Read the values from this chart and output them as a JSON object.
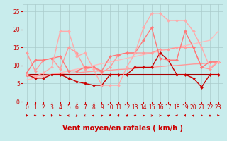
{
  "x": [
    0,
    1,
    2,
    3,
    4,
    5,
    6,
    7,
    8,
    9,
    10,
    11,
    12,
    13,
    14,
    15,
    16,
    17,
    18,
    19,
    20,
    21,
    22,
    23
  ],
  "series": [
    {
      "name": "flat_dark1",
      "color": "#880000",
      "linewidth": 1.5,
      "marker": null,
      "markersize": 0,
      "y": [
        7.5,
        7.5,
        7.5,
        7.5,
        7.5,
        7.5,
        7.5,
        7.5,
        7.5,
        7.5,
        7.5,
        7.5,
        7.5,
        7.5,
        7.5,
        7.5,
        7.5,
        7.5,
        7.5,
        7.5,
        7.5,
        7.5,
        7.5,
        7.5
      ]
    },
    {
      "name": "flat_dark2",
      "color": "#AA0000",
      "linewidth": 1.2,
      "marker": null,
      "markersize": 0,
      "y": [
        7.5,
        7.5,
        7.5,
        7.5,
        7.5,
        7.5,
        7.5,
        7.5,
        7.5,
        7.5,
        7.5,
        7.5,
        7.5,
        7.5,
        7.5,
        7.5,
        7.5,
        7.5,
        7.5,
        7.5,
        7.5,
        7.5,
        7.5,
        7.5
      ]
    },
    {
      "name": "jagged_dark",
      "color": "#CC0000",
      "linewidth": 1.0,
      "marker": "D",
      "markersize": 2.0,
      "y": [
        7.5,
        6.5,
        6.5,
        7.5,
        7.5,
        6.5,
        5.5,
        5.0,
        4.5,
        4.5,
        7.5,
        7.5,
        7.5,
        9.5,
        9.5,
        9.5,
        13.5,
        11.5,
        7.5,
        7.5,
        6.5,
        4.0,
        7.5,
        7.5
      ]
    },
    {
      "name": "medium_light1",
      "color": "#FF9999",
      "linewidth": 1.0,
      "marker": "D",
      "markersize": 2.0,
      "y": [
        13.5,
        8.5,
        11.5,
        12.0,
        9.0,
        15.0,
        13.5,
        9.0,
        9.5,
        8.0,
        9.5,
        13.0,
        13.5,
        13.5,
        13.5,
        13.5,
        14.5,
        14.5,
        15.0,
        15.0,
        15.0,
        9.5,
        9.0,
        11.0
      ]
    },
    {
      "name": "medium_light2",
      "color": "#FF7777",
      "linewidth": 1.0,
      "marker": "D",
      "markersize": 2.0,
      "y": [
        8.0,
        11.5,
        11.5,
        12.0,
        12.5,
        8.5,
        8.5,
        9.5,
        9.5,
        8.5,
        12.5,
        13.0,
        13.5,
        13.5,
        17.0,
        20.5,
        12.0,
        11.5,
        11.5,
        19.5,
        15.0,
        9.5,
        11.0,
        11.0
      ]
    },
    {
      "name": "peaked_light",
      "color": "#FFAAAA",
      "linewidth": 1.0,
      "marker": "D",
      "markersize": 2.0,
      "y": [
        7.5,
        7.0,
        8.0,
        9.5,
        19.5,
        19.5,
        12.5,
        13.5,
        9.0,
        4.5,
        4.5,
        4.5,
        9.5,
        13.5,
        20.5,
        24.5,
        24.5,
        22.5,
        22.5,
        22.5,
        19.5,
        15.0,
        9.5,
        11.0
      ]
    },
    {
      "name": "trend_upper",
      "color": "#FFBBBB",
      "linewidth": 1.0,
      "marker": null,
      "markersize": 0,
      "y": [
        6.0,
        6.5,
        7.0,
        7.5,
        8.0,
        8.5,
        9.0,
        9.5,
        10.0,
        10.5,
        11.0,
        11.5,
        12.0,
        12.5,
        13.0,
        13.5,
        14.0,
        14.5,
        15.0,
        15.5,
        16.0,
        16.5,
        17.0,
        19.5
      ]
    },
    {
      "name": "trend_lower",
      "color": "#FF9999",
      "linewidth": 1.0,
      "marker": null,
      "markersize": 0,
      "y": [
        7.0,
        7.1,
        7.3,
        7.5,
        7.7,
        7.9,
        8.0,
        8.2,
        8.4,
        8.5,
        8.7,
        8.9,
        9.0,
        9.2,
        9.4,
        9.5,
        9.7,
        9.9,
        10.0,
        10.2,
        10.4,
        10.5,
        10.7,
        10.9
      ]
    }
  ],
  "xlim": [
    -0.5,
    23.5
  ],
  "ylim": [
    0,
    27
  ],
  "yticks": [
    0,
    5,
    10,
    15,
    20,
    25
  ],
  "xlabel": "Vent moyen/en rafales ( km/h )",
  "bg_color": "#C8ECEC",
  "grid_color": "#AACCCC",
  "xlabel_color": "#CC0000",
  "xlabel_fontsize": 7,
  "tick_color": "#CC0000",
  "tick_fontsize": 5.5,
  "arrow_angles": [
    -30,
    -60,
    -45,
    -30,
    -45,
    -90,
    -135,
    -120,
    -90,
    -45,
    0,
    30,
    45,
    60,
    90,
    90,
    90,
    60,
    45,
    30,
    45,
    -30,
    -60,
    -45
  ]
}
